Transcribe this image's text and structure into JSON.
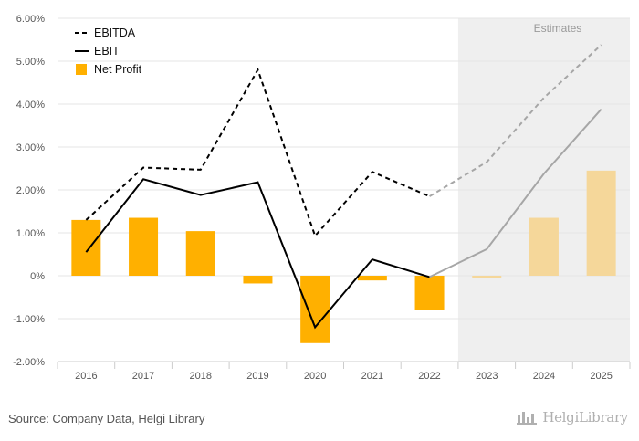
{
  "chart_data": {
    "type": "bar",
    "categories": [
      "2016",
      "2017",
      "2018",
      "2019",
      "2020",
      "2021",
      "2022",
      "2023",
      "2024",
      "2025"
    ],
    "series": [
      {
        "name": "EBITDA",
        "kind": "line",
        "style": "dashed",
        "values": [
          1.3,
          2.52,
          2.47,
          4.8,
          0.93,
          2.42,
          1.85,
          2.65,
          4.15,
          5.38
        ]
      },
      {
        "name": "EBIT",
        "kind": "line",
        "style": "solid",
        "values": [
          0.55,
          2.25,
          1.88,
          2.18,
          -1.2,
          0.38,
          -0.03,
          0.62,
          2.38,
          3.88
        ]
      },
      {
        "name": "Net Profit",
        "kind": "bar",
        "values": [
          1.3,
          1.35,
          1.04,
          -0.18,
          -1.57,
          -0.11,
          -0.79,
          -0.06,
          1.35,
          2.45
        ]
      }
    ],
    "estimate_start_index": 7,
    "estimates_label": "Estimates",
    "ylim": [
      -2.0,
      6.0
    ],
    "yticks": [
      -2,
      -1,
      0,
      1,
      2,
      3,
      4,
      5,
      6
    ],
    "ytick_labels": [
      "-2.00%",
      "-1.00%",
      "0%",
      "1.00%",
      "2.00%",
      "3.00%",
      "4.00%",
      "5.00%",
      "6.00%"
    ],
    "grid": true,
    "legend_position": "top-left",
    "colors": {
      "bar": "#FFB000",
      "bar_estimate": "#F5D79A",
      "line_actual": "#000000",
      "line_estimate": "#A6A6A6",
      "estimate_band": "#EFEFEF",
      "grid": "#E6E6E6"
    }
  },
  "footer": {
    "source": "Source: Company Data, Helgi Library",
    "logo_text": "HelgiLibrary"
  }
}
